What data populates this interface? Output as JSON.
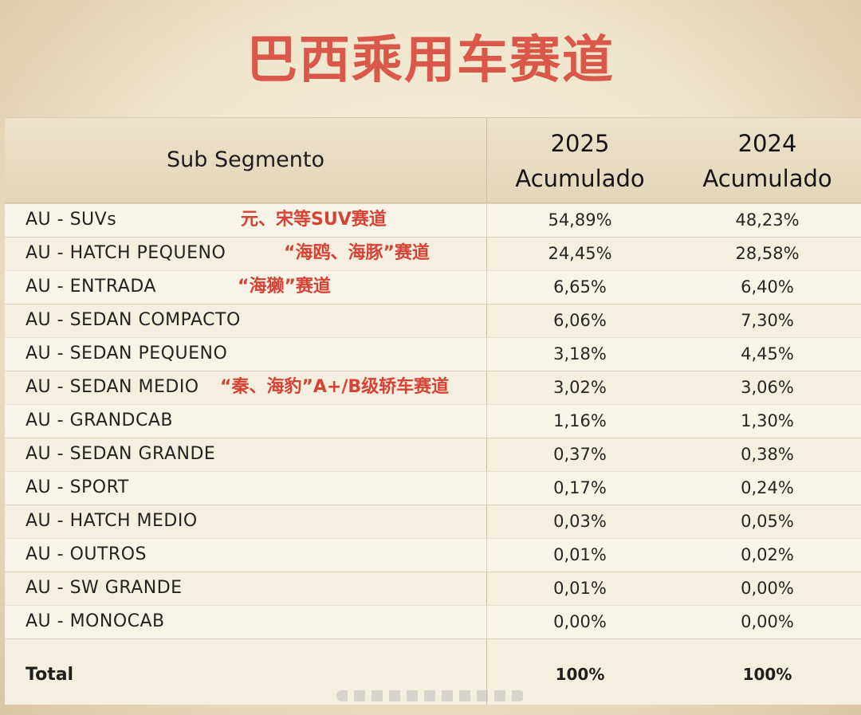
{
  "title": "巴西乘用车赛道",
  "table": {
    "header": {
      "sub_segmento": "Sub Segmento",
      "col_2025_year": "2025",
      "col_2025_label": "Acumulado",
      "col_2024_year": "2024",
      "col_2024_label": "Acumulado"
    },
    "rows": [
      {
        "segment": "AU - SUVs",
        "note": "元、宋等SUV赛道",
        "v2025": "54,89%",
        "v2024": "48,23%"
      },
      {
        "segment": "AU - HATCH PEQUENO",
        "note": "“海鸥、海豚”赛道",
        "v2025": "24,45%",
        "v2024": "28,58%"
      },
      {
        "segment": "AU - ENTRADA",
        "note": "“海獭”赛道",
        "v2025": "6,65%",
        "v2024": "6,40%"
      },
      {
        "segment": "AU - SEDAN COMPACTO",
        "note": "",
        "v2025": "6,06%",
        "v2024": "7,30%"
      },
      {
        "segment": "AU - SEDAN PEQUENO",
        "note": "",
        "v2025": "3,18%",
        "v2024": "4,45%"
      },
      {
        "segment": "AU - SEDAN MEDIO",
        "note": "“秦、海豹”A+/B级轿车赛道",
        "v2025": "3,02%",
        "v2024": "3,06%"
      },
      {
        "segment": "AU - GRANDCAB",
        "note": "",
        "v2025": "1,16%",
        "v2024": "1,30%"
      },
      {
        "segment": "AU - SEDAN GRANDE",
        "note": "",
        "v2025": "0,37%",
        "v2024": "0,38%"
      },
      {
        "segment": "AU - SPORT",
        "note": "",
        "v2025": "0,17%",
        "v2024": "0,24%"
      },
      {
        "segment": "AU - HATCH MEDIO",
        "note": "",
        "v2025": "0,03%",
        "v2024": "0,05%"
      },
      {
        "segment": "AU - OUTROS",
        "note": "",
        "v2025": "0,01%",
        "v2024": "0,02%"
      },
      {
        "segment": "AU - SW GRANDE",
        "note": "",
        "v2025": "0,01%",
        "v2024": "0,00%"
      },
      {
        "segment": "AU - MONOCAB",
        "note": "",
        "v2025": "0,00%",
        "v2024": "0,00%"
      }
    ],
    "total": {
      "label": "Total",
      "v2025": "100%",
      "v2024": "100%"
    }
  },
  "colors": {
    "title": "#d9574b",
    "annotation": "#d64236",
    "header_bg": "#e6dbc0",
    "table_bg": "#f4efde"
  }
}
